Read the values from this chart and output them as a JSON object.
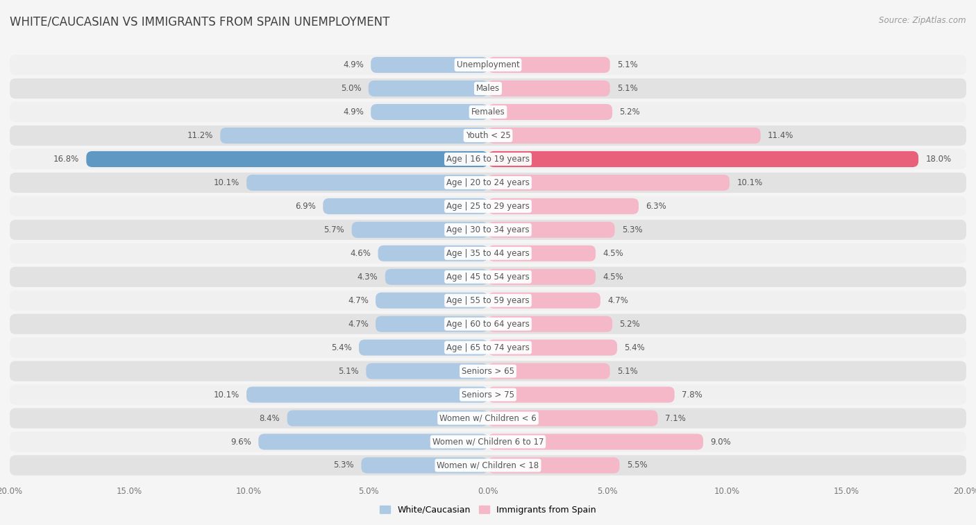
{
  "title": "WHITE/CAUCASIAN VS IMMIGRANTS FROM SPAIN UNEMPLOYMENT",
  "source": "Source: ZipAtlas.com",
  "categories": [
    "Unemployment",
    "Males",
    "Females",
    "Youth < 25",
    "Age | 16 to 19 years",
    "Age | 20 to 24 years",
    "Age | 25 to 29 years",
    "Age | 30 to 34 years",
    "Age | 35 to 44 years",
    "Age | 45 to 54 years",
    "Age | 55 to 59 years",
    "Age | 60 to 64 years",
    "Age | 65 to 74 years",
    "Seniors > 65",
    "Seniors > 75",
    "Women w/ Children < 6",
    "Women w/ Children 6 to 17",
    "Women w/ Children < 18"
  ],
  "white_values": [
    4.9,
    5.0,
    4.9,
    11.2,
    16.8,
    10.1,
    6.9,
    5.7,
    4.6,
    4.3,
    4.7,
    4.7,
    5.4,
    5.1,
    10.1,
    8.4,
    9.6,
    5.3
  ],
  "immigrant_values": [
    5.1,
    5.1,
    5.2,
    11.4,
    18.0,
    10.1,
    6.3,
    5.3,
    4.5,
    4.5,
    4.7,
    5.2,
    5.4,
    5.1,
    7.8,
    7.1,
    9.0,
    5.5
  ],
  "white_color": "#aec9e3",
  "immigrant_color": "#f5b8c8",
  "white_color_highlight": "#6098c4",
  "immigrant_color_highlight": "#e8607a",
  "row_bg_light": "#f0f0f0",
  "row_bg_dark": "#e2e2e2",
  "outer_bg": "#f5f5f5",
  "axis_max": 20.0,
  "title_fontsize": 12,
  "label_fontsize": 8.5,
  "source_fontsize": 8.5,
  "value_fontsize": 8.5
}
